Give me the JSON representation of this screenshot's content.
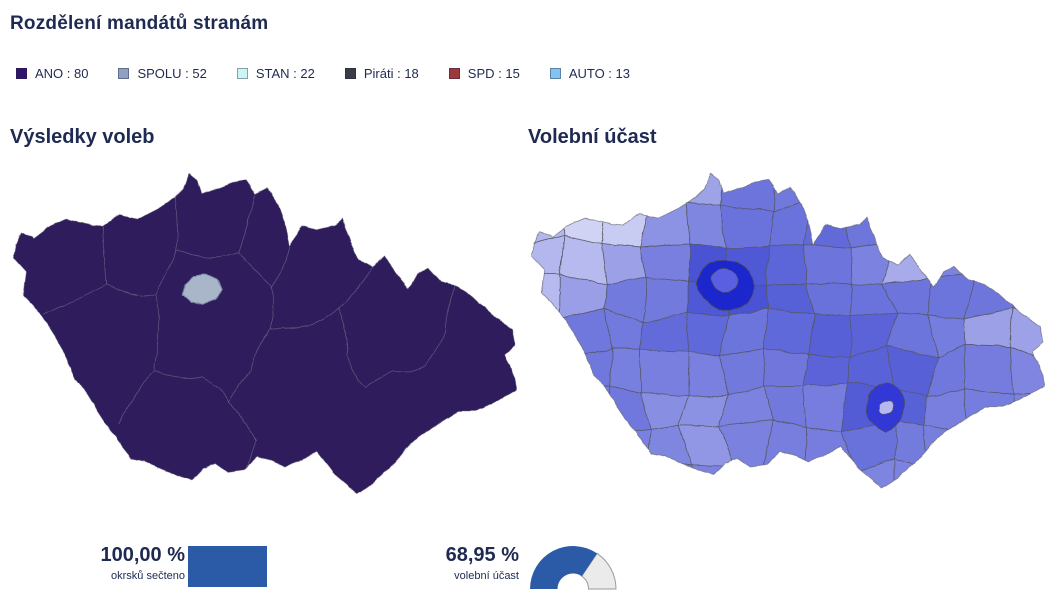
{
  "theme": {
    "ink": "#1e2a52",
    "background": "#ffffff"
  },
  "header": {
    "title": "Rozdělení mandátů stranám"
  },
  "legend": {
    "items": [
      {
        "party": "ANO",
        "seats": 80,
        "label": "ANO : 80",
        "color": "#32156a"
      },
      {
        "party": "SPOLU",
        "seats": 52,
        "label": "SPOLU : 52",
        "color": "#90a0bf"
      },
      {
        "party": "STAN",
        "seats": 22,
        "label": "STAN : 22",
        "color": "#cdf4f4"
      },
      {
        "party": "Piráti",
        "seats": 18,
        "label": "Piráti : 18",
        "color": "#3a3d43"
      },
      {
        "party": "SPD",
        "seats": 15,
        "label": "SPD : 15",
        "color": "#9d393b"
      },
      {
        "party": "AUTO",
        "seats": 13,
        "label": "AUTO : 13",
        "color": "#84c3ef"
      }
    ]
  },
  "maps": {
    "results": {
      "title": "Výsledky voleb",
      "region_fill": "#2d1e5d",
      "prague_fill": "#a9b6ca",
      "border_color": "#8a8a96",
      "outline_color": "#6a6a78"
    },
    "turnout": {
      "title": "Volební účast",
      "scale_light": "#f1f2fc",
      "scale_dark": "#1b27c8",
      "border_color": "#565764",
      "outline_color": "#6a6b78",
      "prague_ring": "#1e27cd",
      "prague_city": "#5a5fe2",
      "brno_region": "#3038d6",
      "brno_city": "#b4b7f0"
    }
  },
  "stats": {
    "counted": {
      "value": "100,00 %",
      "label": "okrsků sečteno",
      "percent": 100,
      "color": "#2b5ba7",
      "track_color": "#e9e9e9"
    },
    "turnout": {
      "value": "68,95 %",
      "label": "volební účast",
      "percent": 68.95,
      "color": "#2b5ba7",
      "rest_color": "#ebebeb",
      "rest_border": "#9a9aa0"
    }
  }
}
